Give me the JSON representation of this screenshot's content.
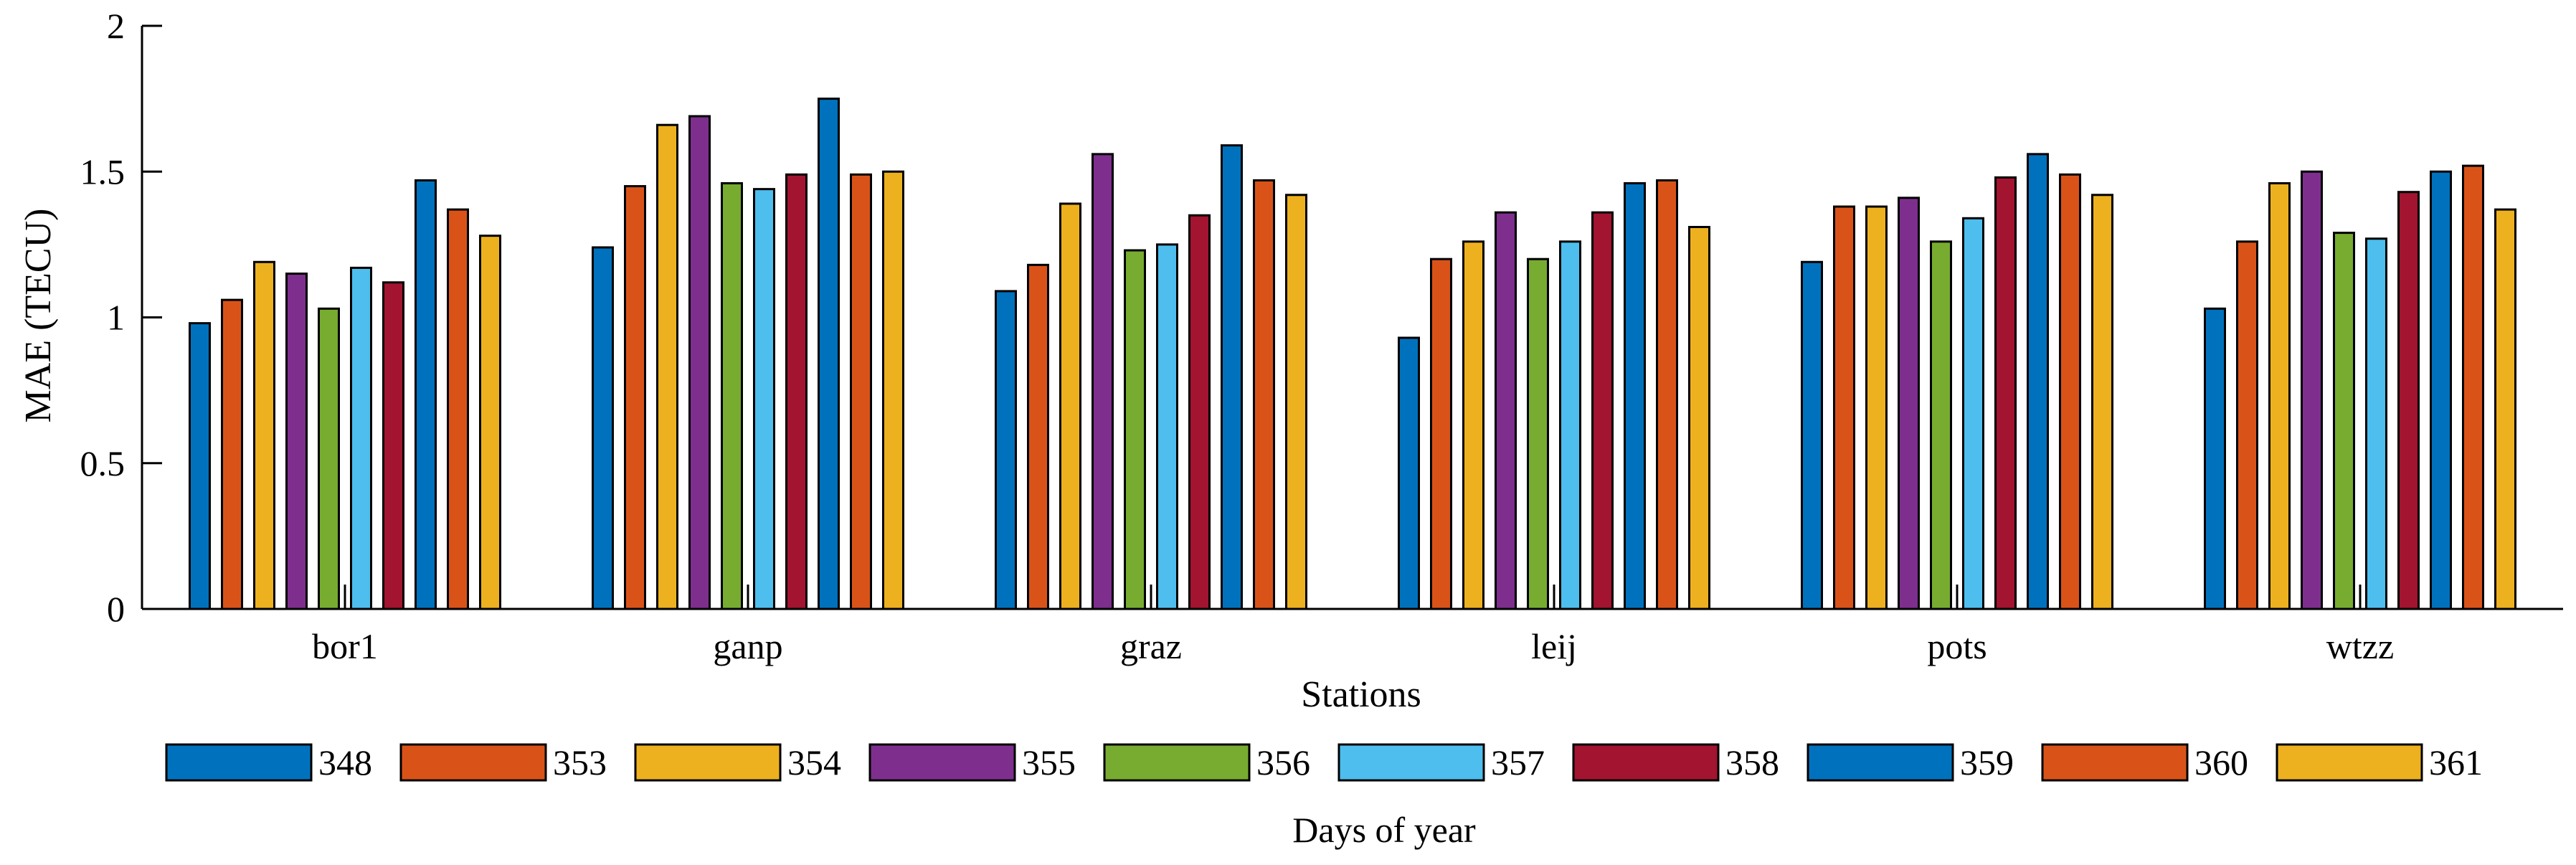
{
  "chart_data": {
    "type": "bar",
    "title": "",
    "xlabel": "Stations",
    "ylabel": "MAE (TECU)",
    "ylim": [
      0,
      2
    ],
    "yticks": [
      "0",
      "0.5",
      "1",
      "1.5",
      "2"
    ],
    "grid": false,
    "categories": [
      "bor1",
      "ganp",
      "graz",
      "leij",
      "pots",
      "wtzz"
    ],
    "legend_title": "Days of year",
    "legend_position": "bottom",
    "series": [
      {
        "name": "348",
        "color": "#0072BD",
        "values": [
          0.98,
          1.24,
          1.09,
          0.93,
          1.19,
          1.03
        ]
      },
      {
        "name": "353",
        "color": "#D95319",
        "values": [
          1.06,
          1.45,
          1.18,
          1.2,
          1.38,
          1.26
        ]
      },
      {
        "name": "354",
        "color": "#EDB120",
        "values": [
          1.19,
          1.66,
          1.39,
          1.26,
          1.38,
          1.46
        ]
      },
      {
        "name": "355",
        "color": "#7E2F8E",
        "values": [
          1.15,
          1.69,
          1.56,
          1.36,
          1.41,
          1.5
        ]
      },
      {
        "name": "356",
        "color": "#77AC30",
        "values": [
          1.03,
          1.46,
          1.23,
          1.2,
          1.26,
          1.29
        ]
      },
      {
        "name": "357",
        "color": "#4DBEEE",
        "values": [
          1.17,
          1.44,
          1.25,
          1.26,
          1.34,
          1.27
        ]
      },
      {
        "name": "358",
        "color": "#A2142F",
        "values": [
          1.12,
          1.49,
          1.35,
          1.36,
          1.48,
          1.43
        ]
      },
      {
        "name": "359",
        "color": "#0072BD",
        "values": [
          1.47,
          1.75,
          1.59,
          1.46,
          1.56,
          1.5
        ]
      },
      {
        "name": "360",
        "color": "#D95319",
        "values": [
          1.37,
          1.49,
          1.47,
          1.47,
          1.49,
          1.52
        ]
      },
      {
        "name": "361",
        "color": "#EDB120",
        "values": [
          1.28,
          1.5,
          1.42,
          1.31,
          1.42,
          1.37
        ]
      }
    ]
  }
}
